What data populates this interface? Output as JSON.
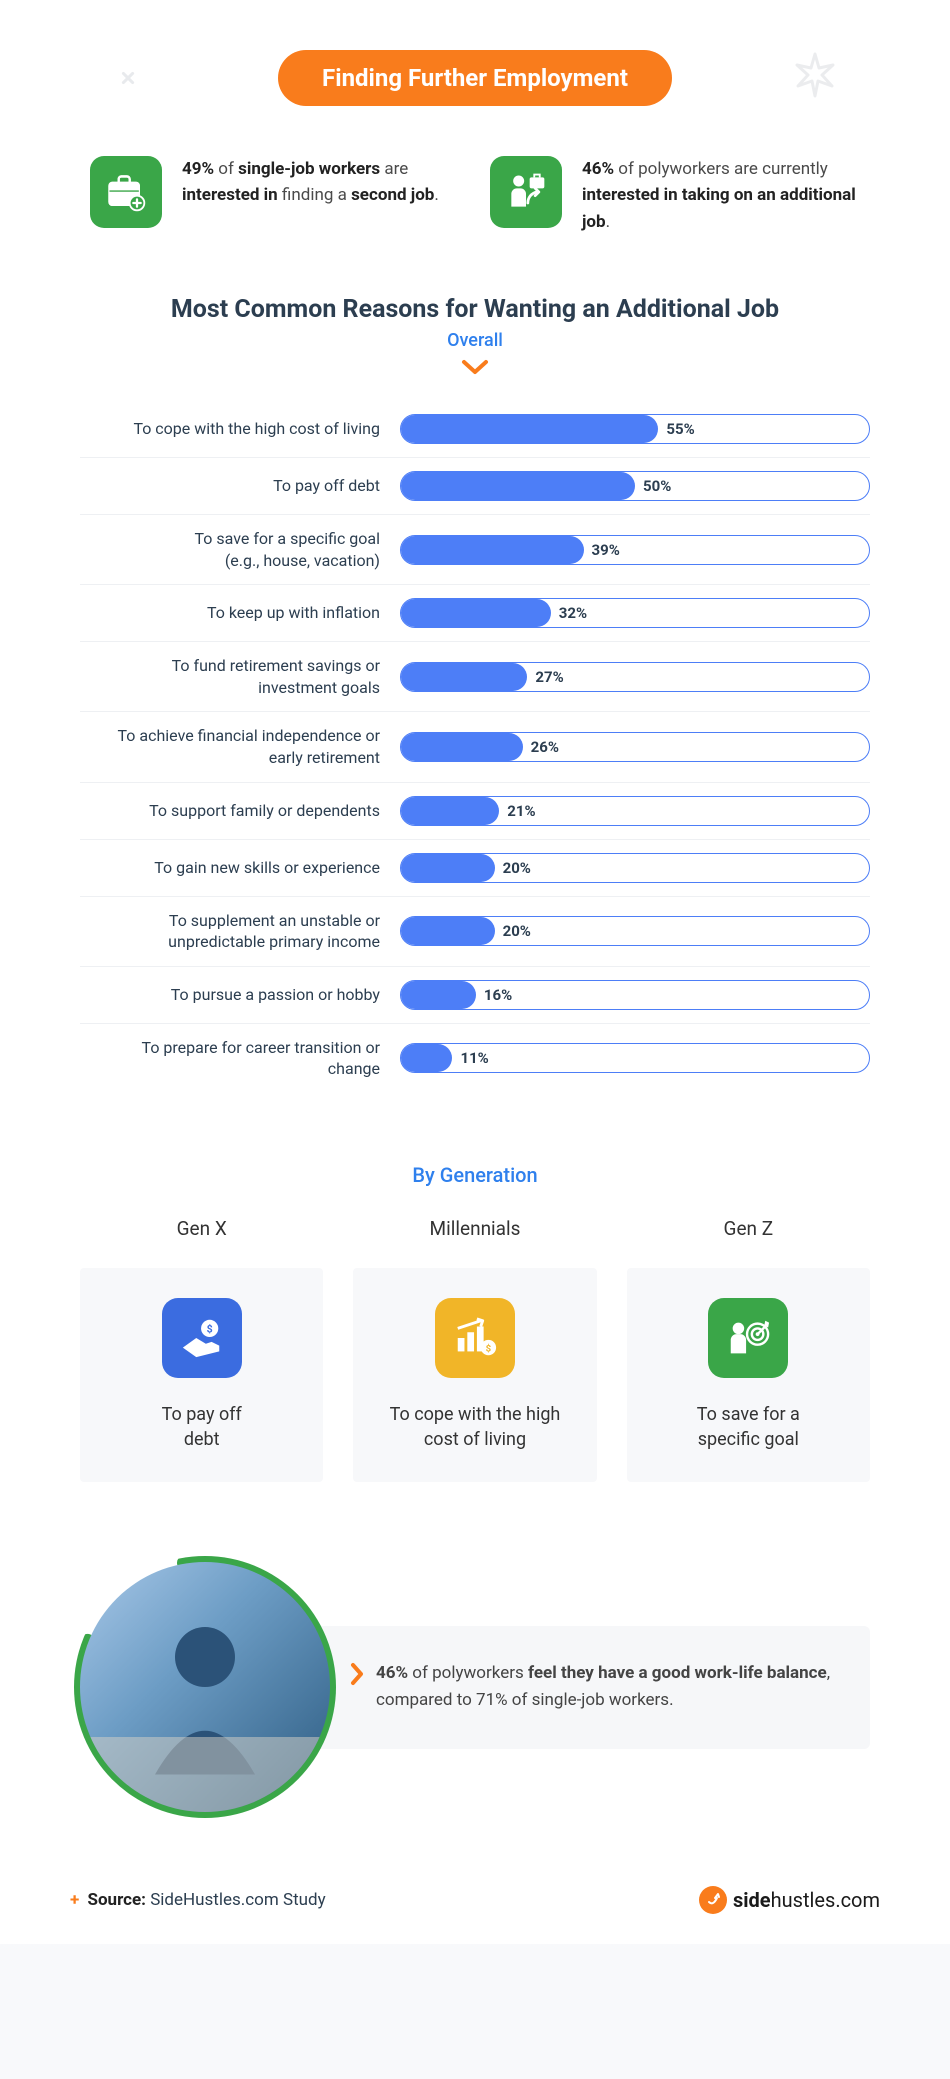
{
  "colors": {
    "accent_orange": "#f97c1c",
    "green": "#3aa648",
    "blue": "#3b6ce0",
    "yellow": "#f1b528",
    "bar_fill": "#4d7ef7",
    "bar_border": "#4d7ef7",
    "sub_blue": "#2f80ed",
    "bg_card": "#f7f8fa",
    "text_dark": "#2c3e50"
  },
  "title": "Finding Further Employment",
  "stats": [
    {
      "icon": "briefcase-plus",
      "pct": "49%",
      "text_a": " of ",
      "bold_a": "single-job workers",
      "text_b": " are ",
      "bold_b": "interested in",
      "text_c": " finding a ",
      "bold_c": "second job",
      "text_d": "."
    },
    {
      "icon": "person-briefcase-arrow",
      "pct": "46%",
      "text_a": " of polyworkers are currently ",
      "bold_a": "interested in taking on an additional job",
      "text_b": ".",
      "bold_b": "",
      "text_c": "",
      "bold_c": "",
      "text_d": ""
    }
  ],
  "chart": {
    "title": "Most Common Reasons for Wanting an Additional Job",
    "subtitle": "Overall",
    "max": 100,
    "rows": [
      {
        "label": "To cope with the high cost of living",
        "value": 55
      },
      {
        "label": "To pay off debt",
        "value": 50
      },
      {
        "label": "To save for a specific goal\n(e.g., house, vacation)",
        "value": 39
      },
      {
        "label": "To keep up with inflation",
        "value": 32
      },
      {
        "label": "To fund retirement savings or\ninvestment goals",
        "value": 27
      },
      {
        "label": "To achieve financial independence or\nearly retirement",
        "value": 26
      },
      {
        "label": "To support family or dependents",
        "value": 21
      },
      {
        "label": "To gain new skills or experience",
        "value": 20
      },
      {
        "label": "To supplement an unstable or\nunpredictable primary income",
        "value": 20
      },
      {
        "label": "To pursue a passion or hobby",
        "value": 16
      },
      {
        "label": "To prepare for career transition or\nchange",
        "value": 11
      }
    ]
  },
  "by_generation": {
    "title": "By Generation",
    "items": [
      {
        "name": "Gen X",
        "color": "#3b6ce0",
        "icon": "hand-coin",
        "text": "To pay off\ndebt"
      },
      {
        "name": "Millennials",
        "color": "#f1b528",
        "icon": "chart-coin",
        "text": "To cope with the high\ncost of living"
      },
      {
        "name": "Gen Z",
        "color": "#3aa648",
        "icon": "target-person",
        "text": "To save for a\nspecific goal"
      }
    ]
  },
  "quote": {
    "pct": "46%",
    "text_a": " of polyworkers ",
    "bold_a": "feel they have a good work-life balance",
    "text_b": ", compared to 71% of single-job workers."
  },
  "footer": {
    "source_label": "Source:",
    "source_value": "SideHustles.com Study",
    "logo_a": "side",
    "logo_b": "hustles",
    "logo_c": ".com"
  }
}
